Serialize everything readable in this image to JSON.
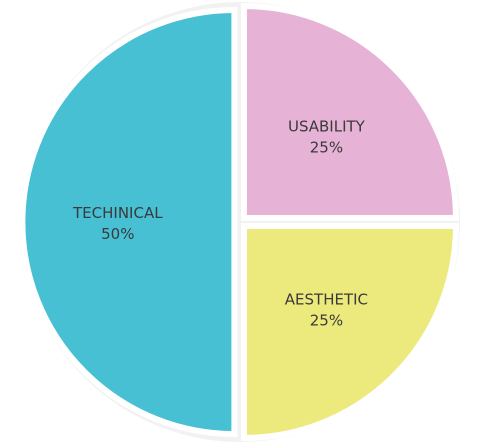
{
  "chart_data": {
    "type": "pie",
    "slices": [
      {
        "label": "TECHINICAL",
        "value": 50,
        "value_label": "50%",
        "color": "#47c0d4"
      },
      {
        "label": "USABILITY",
        "value": 25,
        "value_label": "25%",
        "color": "#e6b3d6"
      },
      {
        "label": "AESTHETIC",
        "value": 25,
        "value_label": "25%",
        "color": "#ecea7c"
      }
    ],
    "legend": "none",
    "exploded": true,
    "background_color": "#f2f2f2"
  }
}
